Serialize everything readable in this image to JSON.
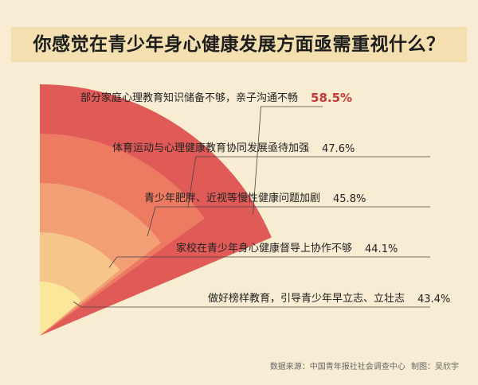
{
  "title": "你感觉在青少年身心健康发展方面亟需重视什么？",
  "footer": {
    "source": "数据来源：中国青年报社社会调查中心",
    "producer": "制图：吴欣宇"
  },
  "chart_data": {
    "type": "pie",
    "title": "你感觉在青少年身心健康发展方面亟需重视什么？",
    "categories": [
      "部分家庭心理教育知识储备不够，亲子沟通不畅",
      "体育运动与心理健康教育协同发展亟待加强",
      "青少年肥胖、近视等慢性健康问题加剧",
      "家校在青少年身心健康督导上协作不够",
      "做好榜样教育，引导青少年早立志、立壮志"
    ],
    "values": [
      58.5,
      47.6,
      45.8,
      44.1,
      43.4
    ],
    "value_labels": [
      "58.5%",
      "47.6%",
      "45.8%",
      "44.1%",
      "43.4%"
    ],
    "colors": [
      "#e05b58",
      "#ec7b62",
      "#f29f76",
      "#f6c58a",
      "#fbe79a"
    ],
    "highlight_color": "#c43a3a"
  }
}
